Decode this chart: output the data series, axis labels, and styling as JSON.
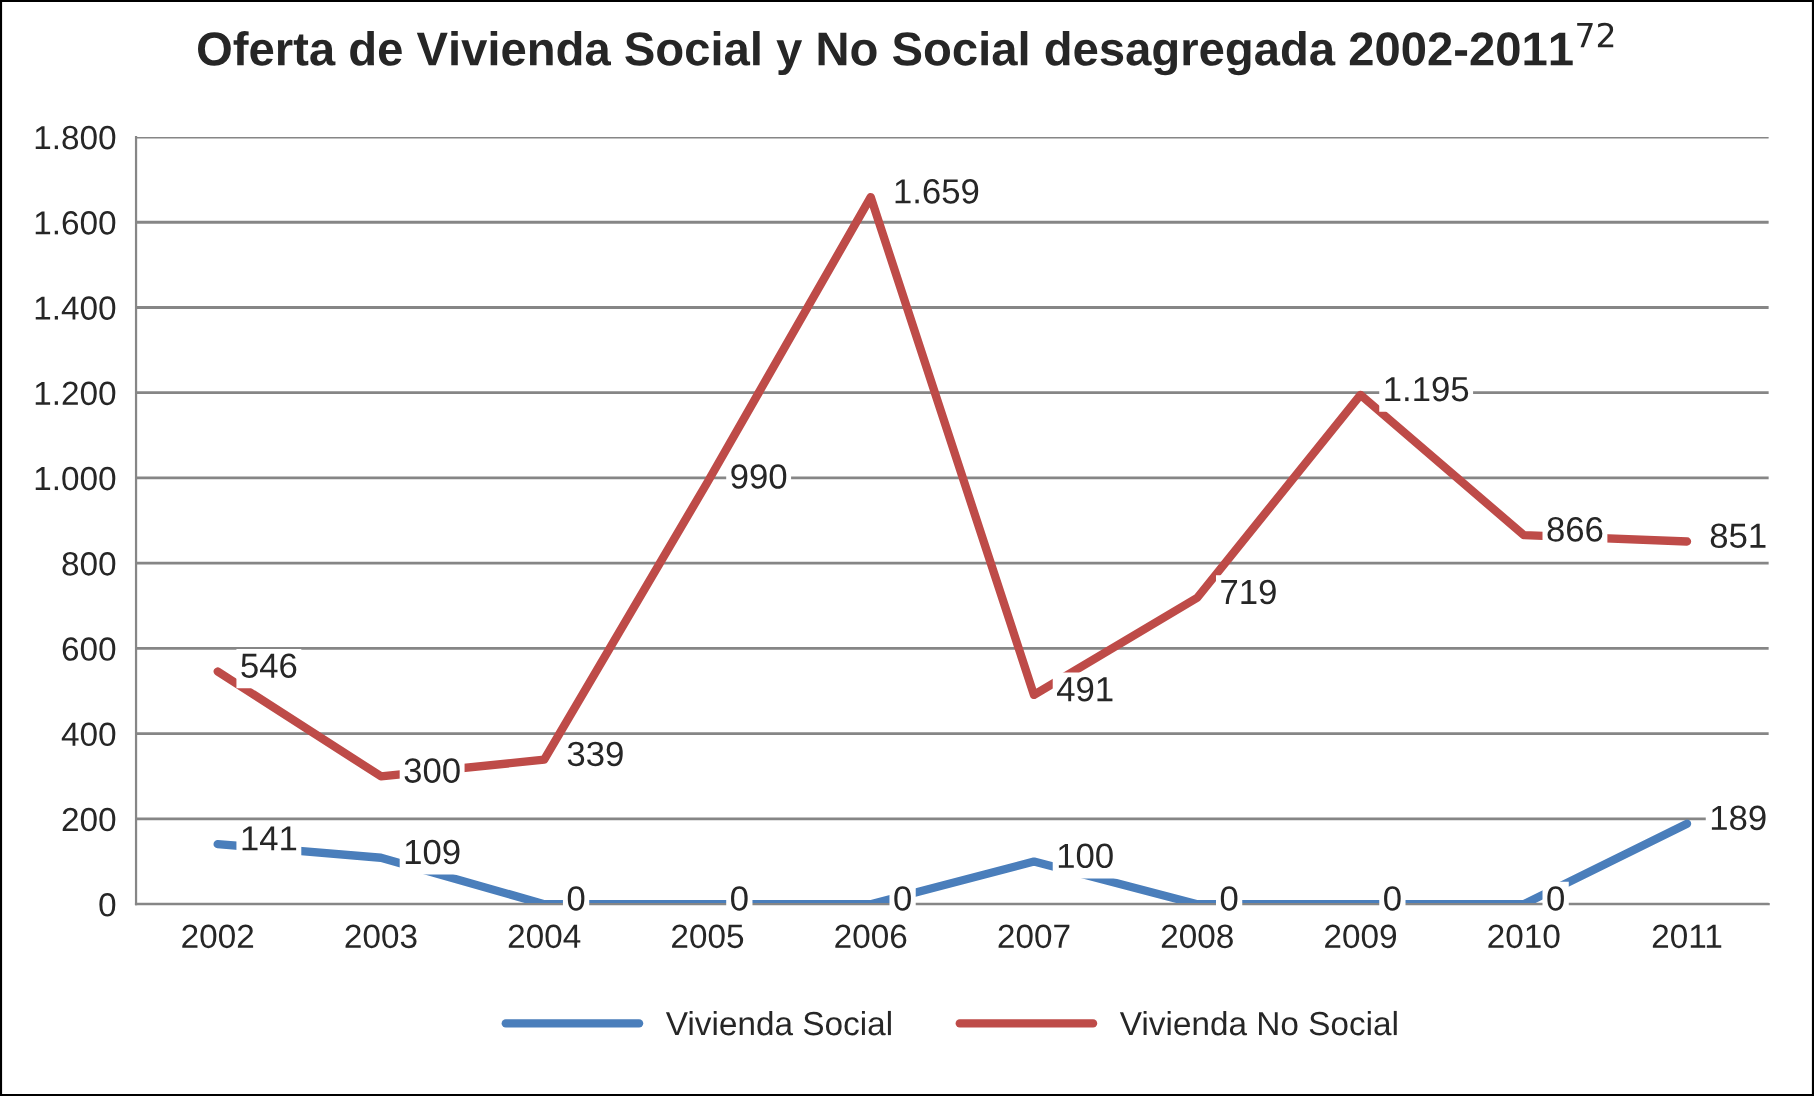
{
  "chart_data": {
    "type": "line",
    "title": "Oferta de Vivienda Social y No Social desagregada 2002-2011$^{72}$",
    "categories": [
      "2002",
      "2003",
      "2004",
      "2005",
      "2006",
      "2007",
      "2008",
      "2009",
      "2010",
      "2011"
    ],
    "series": [
      {
        "name": "Vivienda Social",
        "color": "#4a7ebb",
        "values": [
          141,
          109,
          0,
          0,
          0,
          100,
          0,
          0,
          0,
          189
        ],
        "value_labels": [
          "141",
          "109",
          "0",
          "0",
          "0",
          "100",
          "0",
          "0",
          "0",
          "189"
        ]
      },
      {
        "name": "Vivienda No Social",
        "color": "#be4b48",
        "values": [
          546,
          300,
          339,
          990,
          1659,
          491,
          719,
          1195,
          866,
          851
        ],
        "value_labels": [
          "546",
          "300",
          "339",
          "990",
          "1.659",
          "491",
          "719",
          "1.195",
          "866",
          "851"
        ]
      }
    ],
    "ylim": [
      0,
      1800
    ],
    "yticks": [
      0,
      200,
      400,
      600,
      800,
      {
        "value": 1000,
        "label": "1.000"
      },
      {
        "value": 1200,
        "label": "1.200"
      },
      {
        "value": 1400,
        "label": "1.400"
      },
      {
        "value": 1600,
        "label": "1.600"
      },
      {
        "value": 1800,
        "label": "1.800"
      }
    ],
    "grid": "y",
    "legend": "bottom",
    "marker": "none",
    "line_style": "solid"
  }
}
